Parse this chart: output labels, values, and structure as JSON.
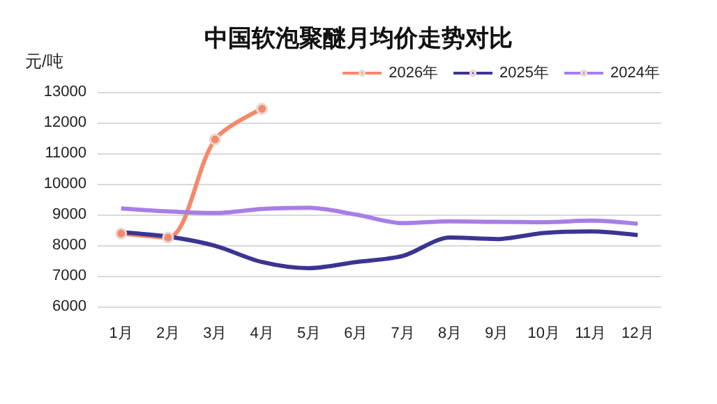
{
  "chart_data": {
    "type": "line",
    "title": "中国软泡聚醚月均价走势对比",
    "ylabel": "元/吨",
    "categories": [
      "1月",
      "2月",
      "3月",
      "4月",
      "5月",
      "6月",
      "7月",
      "8月",
      "9月",
      "10月",
      "11月",
      "12月"
    ],
    "series": [
      {
        "name": "2026年",
        "color": "#f4896b",
        "marker": "circle",
        "values": [
          8380,
          8250,
          11450,
          12450,
          null,
          null,
          null,
          null,
          null,
          null,
          null,
          null
        ]
      },
      {
        "name": "2025年",
        "color": "#3b3591",
        "marker": "none",
        "values": [
          8420,
          8280,
          7980,
          7450,
          7250,
          7450,
          7650,
          8250,
          8200,
          8400,
          8450,
          8330
        ]
      },
      {
        "name": "2024年",
        "color": "#a77ee6",
        "marker": "none",
        "values": [
          9200,
          9100,
          9050,
          9180,
          9220,
          9000,
          8720,
          8780,
          8760,
          8750,
          8800,
          8700
        ]
      }
    ],
    "ylim": [
      6000,
      13000
    ],
    "yticks": [
      6000,
      7000,
      8000,
      9000,
      10000,
      11000,
      12000,
      13000
    ],
    "grid": "y",
    "legend": "top right"
  }
}
